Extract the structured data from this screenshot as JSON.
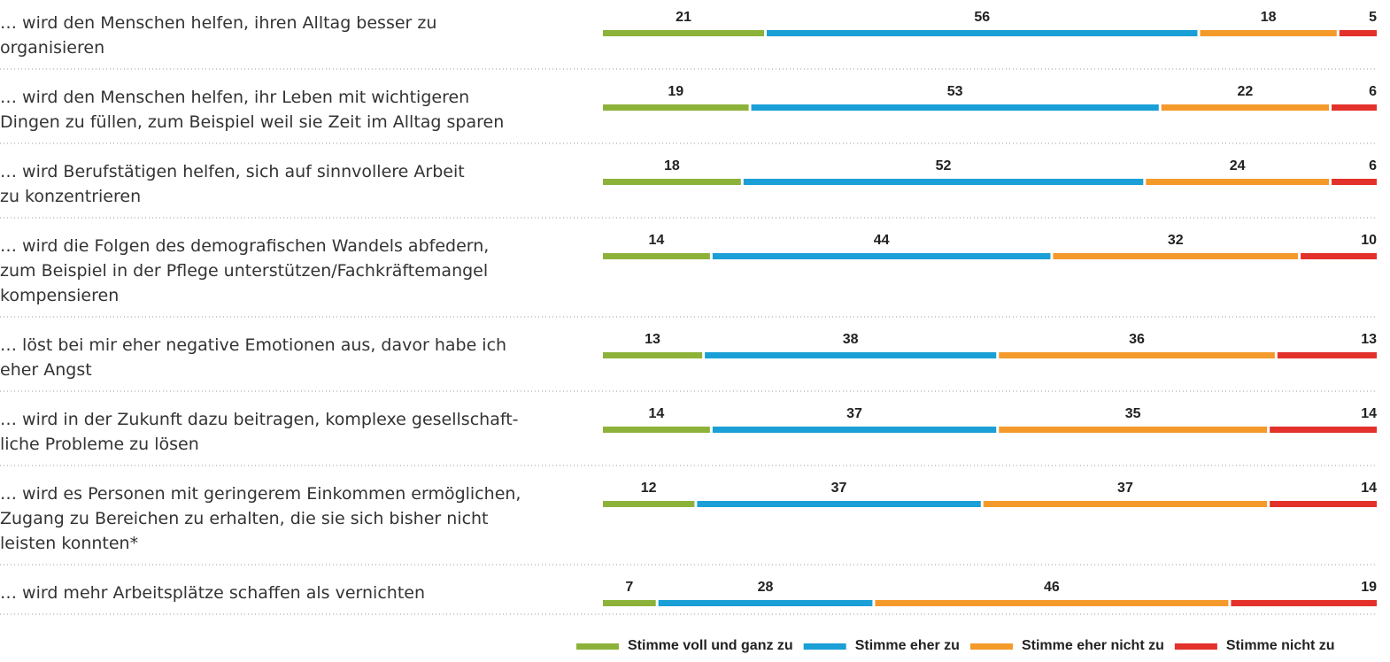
{
  "chart_data": {
    "type": "stacked-bar-horizontal",
    "categories": [
      "… wird den Menschen helfen, ihren Alltag besser zu\norganisieren",
      "… wird den Menschen helfen, ihr Leben mit wichtigeren\nDingen zu füllen, zum Beispiel weil sie Zeit im Alltag sparen",
      "… wird Berufstätigen helfen, sich auf sinnvollere Arbeit\nzu konzentrieren",
      "… wird die Folgen des demografischen Wandels abfedern,\nzum Beispiel in der Pflege unterstützen/Fachkräftemangel\nkompensieren",
      "… löst bei mir eher negative Emotionen aus, davor habe ich\neher Angst",
      "… wird in der Zukunft dazu beitragen, komplexe gesellschaft-\nliche Probleme zu lösen",
      "… wird es Personen mit geringerem Einkommen ermöglichen,\nZugang zu Bereichen zu erhalten, die sie sich bisher nicht\nleisten konnten*",
      "… wird mehr Arbeitsplätze schaffen als vernichten"
    ],
    "series": [
      {
        "name": "Stimme voll und ganz zu",
        "color": "#8cb23a",
        "values": [
          21,
          19,
          18,
          14,
          13,
          14,
          12,
          7
        ]
      },
      {
        "name": "Stimme eher zu",
        "color": "#1a9fd6",
        "values": [
          56,
          53,
          52,
          44,
          38,
          37,
          37,
          28
        ]
      },
      {
        "name": "Stimme eher nicht zu",
        "color": "#f39a2b",
        "values": [
          18,
          22,
          24,
          32,
          36,
          35,
          37,
          46
        ]
      },
      {
        "name": "Stimme nicht zu",
        "color": "#e3312b",
        "values": [
          5,
          6,
          6,
          10,
          13,
          14,
          14,
          19
        ]
      }
    ]
  }
}
